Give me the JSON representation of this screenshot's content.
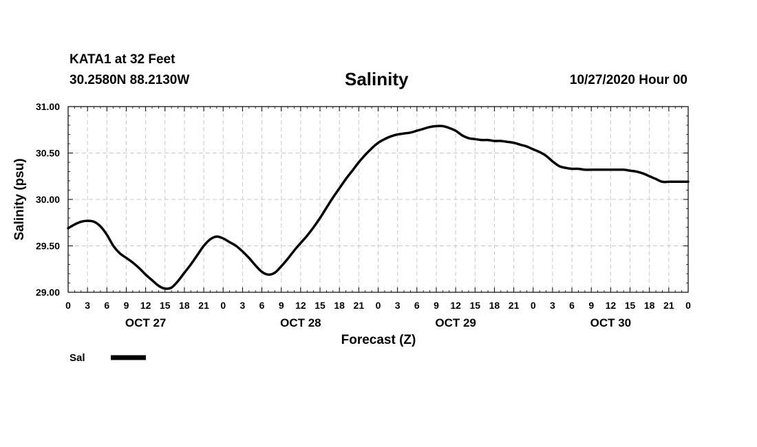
{
  "header": {
    "station": "KATA1 at 32 Feet",
    "coords": "30.2580N 88.2130W",
    "title": "Salinity",
    "timestamp": "10/27/2020 Hour 00"
  },
  "legend": {
    "label": "Sal"
  },
  "chart_data": {
    "type": "line",
    "title": "Salinity",
    "xlabel": "Forecast (Z)",
    "ylabel": "Salinity (psu)",
    "ylim": [
      29.0,
      31.0
    ],
    "y_ticks": [
      "29.00",
      "29.50",
      "30.00",
      "30.50",
      "31.00"
    ],
    "x_range_hours": [
      0,
      96
    ],
    "x_tick_labels": [
      "0",
      "3",
      "6",
      "9",
      "12",
      "15",
      "18",
      "21",
      "0",
      "3",
      "6",
      "9",
      "12",
      "15",
      "18",
      "21",
      "0",
      "3",
      "6",
      "9",
      "12",
      "15",
      "18",
      "21",
      "0",
      "3",
      "6",
      "9",
      "12",
      "15",
      "18",
      "21",
      "0"
    ],
    "day_labels": [
      {
        "label": "OCT 27",
        "hour": 12
      },
      {
        "label": "OCT 28",
        "hour": 36
      },
      {
        "label": "OCT 29",
        "hour": 60
      },
      {
        "label": "OCT 30",
        "hour": 84
      }
    ],
    "grid": true,
    "series": [
      {
        "name": "Sal",
        "color": "#000000",
        "x": [
          0,
          1,
          2,
          3,
          4,
          5,
          6,
          7,
          8,
          9,
          10,
          11,
          12,
          13,
          14,
          15,
          16,
          17,
          18,
          19,
          20,
          21,
          22,
          23,
          24,
          25,
          26,
          27,
          28,
          29,
          30,
          31,
          32,
          33,
          34,
          35,
          36,
          37,
          38,
          39,
          40,
          41,
          42,
          43,
          44,
          45,
          46,
          47,
          48,
          49,
          50,
          51,
          52,
          53,
          54,
          55,
          56,
          57,
          58,
          59,
          60,
          61,
          62,
          63,
          64,
          65,
          66,
          67,
          68,
          69,
          70,
          71,
          72,
          73,
          74,
          75,
          76,
          77,
          78,
          79,
          80,
          81,
          82,
          83,
          84,
          85,
          86,
          87,
          88,
          89,
          90,
          91,
          92,
          93,
          94,
          95,
          96
        ],
        "values": [
          29.69,
          29.73,
          29.76,
          29.77,
          29.76,
          29.71,
          29.62,
          29.5,
          29.42,
          29.37,
          29.32,
          29.26,
          29.19,
          29.13,
          29.07,
          29.04,
          29.05,
          29.12,
          29.21,
          29.3,
          29.4,
          29.5,
          29.57,
          29.6,
          29.58,
          29.54,
          29.5,
          29.44,
          29.37,
          29.29,
          29.22,
          29.19,
          29.21,
          29.28,
          29.36,
          29.45,
          29.53,
          29.61,
          29.7,
          29.8,
          29.91,
          30.02,
          30.12,
          30.22,
          30.31,
          30.4,
          30.48,
          30.55,
          30.61,
          30.65,
          30.68,
          30.7,
          30.71,
          30.72,
          30.74,
          30.76,
          30.78,
          30.79,
          30.79,
          30.77,
          30.74,
          30.69,
          30.66,
          30.65,
          30.64,
          30.64,
          30.63,
          30.63,
          30.62,
          30.61,
          30.59,
          30.57,
          30.54,
          30.51,
          30.47,
          30.41,
          30.36,
          30.34,
          30.33,
          30.33,
          30.32,
          30.32,
          30.32,
          30.32,
          30.32,
          30.32,
          30.32,
          30.31,
          30.3,
          30.28,
          30.25,
          30.22,
          30.19,
          30.19,
          30.19,
          30.19,
          30.19
        ]
      }
    ]
  }
}
